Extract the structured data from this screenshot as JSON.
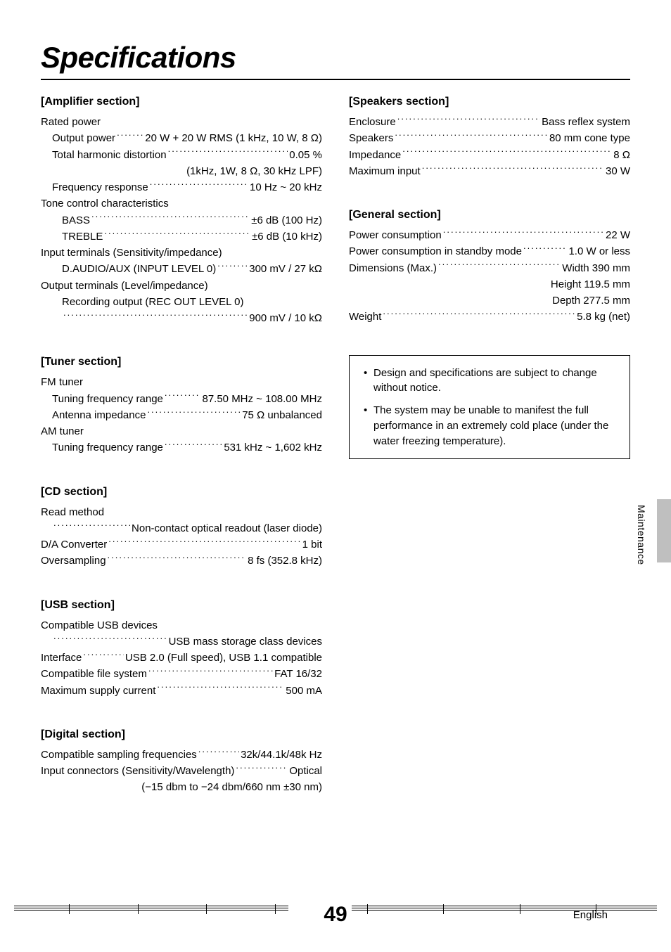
{
  "title": "Specifications",
  "page_number": "49",
  "footer_lang": "English",
  "side_label": "Maintenance",
  "notes": [
    "Design and specifications are subject to change without notice.",
    "The system may be unable to manifest the full performance in an extremely cold place (under the water freezing temperature)."
  ],
  "sections": {
    "amplifier": {
      "head": "[Amplifier section]",
      "lines": [
        {
          "type": "plain",
          "label": "Rated power",
          "value": ""
        },
        {
          "type": "dots",
          "indent": 1,
          "label": "Output power",
          "value": "20 W + 20 W RMS (1 kHz, 10 W, 8 Ω)"
        },
        {
          "type": "dots",
          "indent": 1,
          "label": "Total harmonic distortion",
          "value": "0.05 %"
        },
        {
          "type": "right",
          "value": "(1kHz, 1W, 8 Ω, 30 kHz LPF)"
        },
        {
          "type": "dots",
          "indent": 1,
          "label": "Frequency response",
          "value": "10 Hz ~ 20 kHz"
        },
        {
          "type": "plain",
          "label": "Tone control characteristics",
          "value": ""
        },
        {
          "type": "dots",
          "indent": 2,
          "label": "BASS",
          "value": "±6 dB (100 Hz)"
        },
        {
          "type": "dots",
          "indent": 2,
          "label": "TREBLE",
          "value": "±6 dB (10 kHz)"
        },
        {
          "type": "plain",
          "label": "Input terminals (Sensitivity/impedance)",
          "value": ""
        },
        {
          "type": "dots",
          "indent": 2,
          "label": "D.AUDIO/AUX (INPUT LEVEL 0)",
          "value": "300 mV / 27 kΩ"
        },
        {
          "type": "plain",
          "label": "Output terminals (Level/impedance)",
          "value": ""
        },
        {
          "type": "plain",
          "indent": 2,
          "label": "Recording output (REC OUT LEVEL 0)",
          "value": ""
        },
        {
          "type": "dots",
          "indent": 2,
          "label": "",
          "value": "900 mV / 10 kΩ"
        }
      ]
    },
    "tuner": {
      "head": "[Tuner section]",
      "lines": [
        {
          "type": "plain",
          "label": "FM tuner",
          "value": ""
        },
        {
          "type": "dots",
          "indent": 1,
          "label": "Tuning frequency range",
          "value": "87.50 MHz ~ 108.00 MHz"
        },
        {
          "type": "dots",
          "indent": 1,
          "label": "Antenna impedance",
          "value": "75 Ω unbalanced"
        },
        {
          "type": "plain",
          "label": "AM tuner",
          "value": ""
        },
        {
          "type": "dots",
          "indent": 1,
          "label": "Tuning frequency range",
          "value": "531 kHz ~ 1,602 kHz"
        }
      ]
    },
    "cd": {
      "head": "[CD  section]",
      "lines": [
        {
          "type": "plain",
          "label": "Read method",
          "value": ""
        },
        {
          "type": "dots",
          "indent": 1,
          "label": "",
          "value": "Non-contact optical readout (laser diode)"
        },
        {
          "type": "dots",
          "label": "D/A Converter",
          "value": "1 bit"
        },
        {
          "type": "dots",
          "label": "Oversampling",
          "value": "8 fs (352.8 kHz)"
        }
      ]
    },
    "usb": {
      "head": "[USB section]",
      "lines": [
        {
          "type": "plain",
          "label": "Compatible USB devices",
          "value": ""
        },
        {
          "type": "dots",
          "indent": 1,
          "label": "",
          "value": "USB mass storage class devices"
        },
        {
          "type": "dots",
          "label": "Interface",
          "value": "USB 2.0 (Full speed), USB 1.1 compatible"
        },
        {
          "type": "dots",
          "label": "Compatible file system",
          "value": "FAT 16/32"
        },
        {
          "type": "dots",
          "label": "Maximum supply current",
          "value": "500 mA"
        }
      ]
    },
    "digital": {
      "head": "[Digital section]",
      "lines": [
        {
          "type": "dots",
          "label": "Compatible sampling frequencies",
          "value": "32k/44.1k/48k Hz"
        },
        {
          "type": "dots",
          "label": "Input connectors (Sensitivity/Wavelength)",
          "value": "Optical"
        },
        {
          "type": "right",
          "value": "(−15 dbm to −24 dbm/660 nm ±30 nm)"
        }
      ]
    },
    "speakers": {
      "head": "[Speakers section]",
      "lines": [
        {
          "type": "dots",
          "label": "Enclosure",
          "value": "Bass reflex system"
        },
        {
          "type": "dots",
          "label": "Speakers",
          "value": "80 mm cone type"
        },
        {
          "type": "dots",
          "label": "Impedance",
          "value": "8 Ω"
        },
        {
          "type": "dots",
          "label": "Maximum input",
          "value": "30 W"
        }
      ]
    },
    "general": {
      "head": "[General section]",
      "lines": [
        {
          "type": "dots",
          "label": "Power consumption",
          "value": "22 W"
        },
        {
          "type": "dots",
          "label": "Power consumption in standby mode",
          "value": "1.0 W or less"
        },
        {
          "type": "dots",
          "label": "Dimensions (Max.)",
          "value": "Width 390 mm"
        },
        {
          "type": "right",
          "value": "Height 119.5 mm"
        },
        {
          "type": "right",
          "value": "Depth 277.5 mm"
        },
        {
          "type": "dots",
          "label": "Weight",
          "value": "5.8 kg (net)"
        }
      ]
    }
  }
}
